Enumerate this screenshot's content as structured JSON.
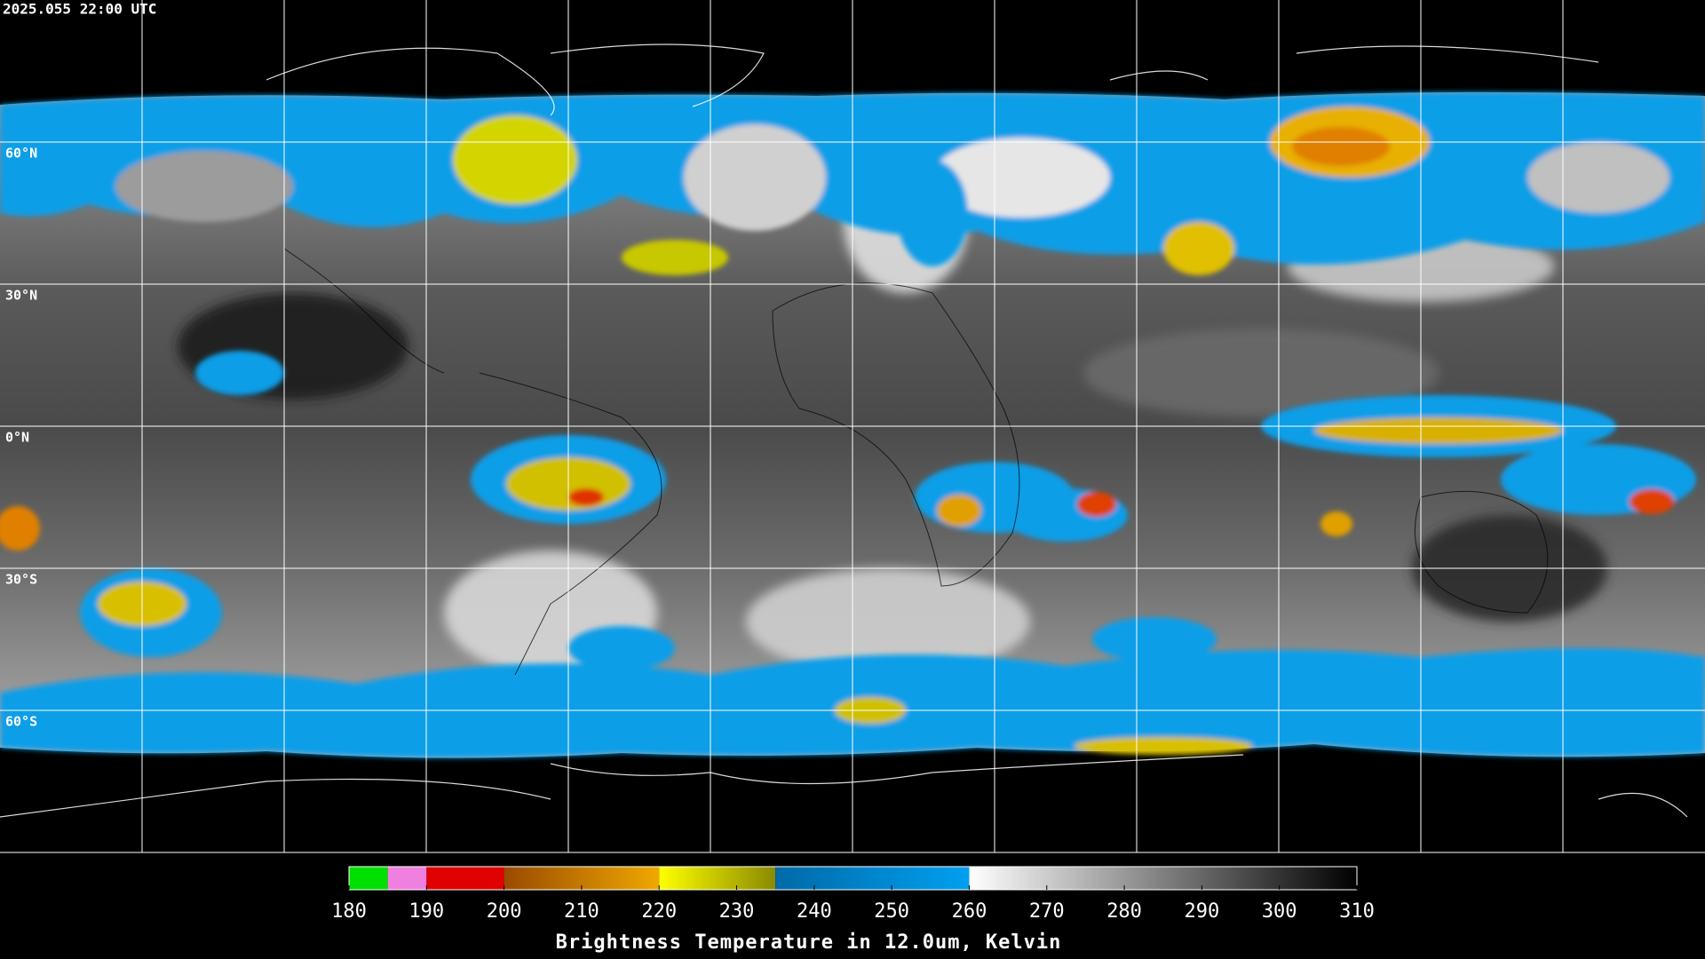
{
  "header": {
    "title": "2025.055 22:00 UTC"
  },
  "map": {
    "lat_labels": [
      "60°N",
      "30°N",
      "0°N",
      "30°S",
      "60°S"
    ]
  },
  "colorbar": {
    "range": [
      180,
      310
    ],
    "ticks": [
      180,
      190,
      200,
      210,
      220,
      230,
      240,
      250,
      260,
      270,
      280,
      290,
      300,
      310
    ],
    "label": "Brightness Temperature in 12.0um, Kelvin",
    "segments": [
      {
        "from": 180,
        "to": 185,
        "color_start": "#00e000",
        "color_end": "#00e000"
      },
      {
        "from": 185,
        "to": 190,
        "color_start": "#f080e0",
        "color_end": "#f080e0"
      },
      {
        "from": 190,
        "to": 200,
        "color_start": "#e00000",
        "color_end": "#e00000"
      },
      {
        "from": 200,
        "to": 220,
        "color_start": "#9a4a00",
        "color_end": "#f0a800"
      },
      {
        "from": 220,
        "to": 235,
        "color_start": "#ffff00",
        "color_end": "#8a8a00"
      },
      {
        "from": 235,
        "to": 260,
        "color_start": "#006aa8",
        "color_end": "#00a0f0"
      },
      {
        "from": 260,
        "to": 310,
        "color_start": "#ffffff",
        "color_end": "#000000"
      }
    ]
  }
}
